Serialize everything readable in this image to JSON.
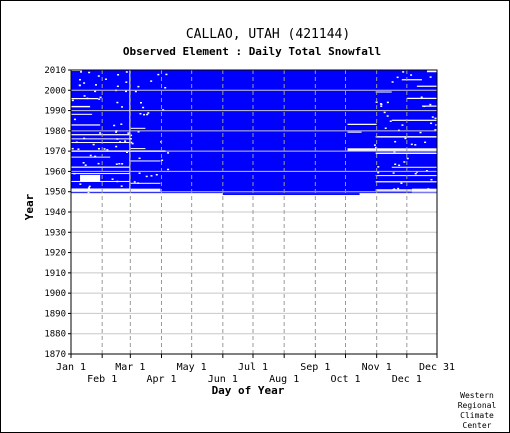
{
  "chart_data": {
    "type": "heatmap",
    "title": "CALLAO, UTAH   (421144)",
    "subtitle": "Observed Element : Daily Total Snowfall",
    "xlabel": "Day of Year",
    "ylabel": "Year",
    "ylim": [
      1870,
      2010
    ],
    "yticks": [
      1870,
      1880,
      1890,
      1900,
      1910,
      1920,
      1930,
      1940,
      1950,
      1960,
      1970,
      1980,
      1990,
      2000,
      2010
    ],
    "xticks_upper": [
      "Jan 1",
      "Mar 1",
      "May 1",
      "Jul 1",
      "Sep 1",
      "Nov 1",
      "Dec 31"
    ],
    "xticks_lower": [
      "Feb 1",
      "Apr 1",
      "Jun 1",
      "Aug 1",
      "Oct 1",
      "Dec 1"
    ],
    "fill_color": "#0000ff",
    "grid": true,
    "data_coverage": {
      "full_period_start": "1948-06",
      "full_period_end": "2010",
      "partial_start_year": 1950
    }
  },
  "credit": [
    "Western",
    "Regional",
    "Climate",
    "Center"
  ]
}
